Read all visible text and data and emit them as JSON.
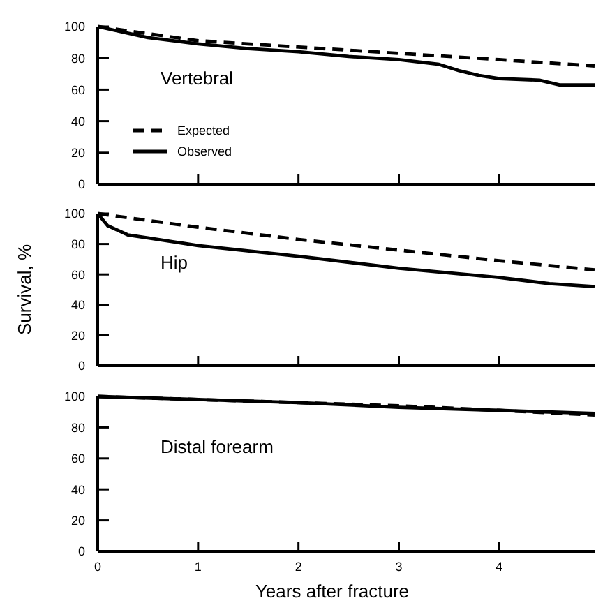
{
  "chart_data": [
    {
      "type": "line",
      "title": "Vertebral",
      "xlim": [
        0,
        4.95
      ],
      "ylim": [
        0,
        100
      ],
      "xticks": [
        {
          "value": 0,
          "label": null
        },
        {
          "value": 1,
          "label": null
        },
        {
          "value": 2,
          "label": null
        },
        {
          "value": 3,
          "label": null
        },
        {
          "value": 4,
          "label": null
        }
      ],
      "yticks": [
        0,
        20,
        40,
        60,
        80,
        100
      ],
      "tick_labels": "y",
      "legend": "left",
      "grid": false,
      "series": [
        {
          "name": "Expected",
          "color": "#000000",
          "line_style": "dashed",
          "x": [
            0,
            1,
            2,
            3,
            4,
            4.95
          ],
          "values": [
            100,
            91,
            87,
            83,
            79,
            75
          ]
        },
        {
          "name": "Observed",
          "color": "#000000",
          "line_style": "solid",
          "x": [
            0,
            0.5,
            1,
            1.5,
            2,
            2.5,
            3,
            3.4,
            3.6,
            3.8,
            4,
            4.4,
            4.6,
            4.95
          ],
          "values": [
            100,
            93,
            89,
            86,
            84,
            81,
            79,
            76,
            72,
            69,
            67,
            66,
            63,
            63
          ]
        }
      ]
    },
    {
      "type": "line",
      "title": "Hip",
      "ylabel": "Survival, %",
      "xlim": [
        0,
        4.95
      ],
      "ylim": [
        0,
        100
      ],
      "xticks": [
        {
          "value": 0,
          "label": null
        },
        {
          "value": 1,
          "label": null
        },
        {
          "value": 2,
          "label": null
        },
        {
          "value": 3,
          "label": null
        },
        {
          "value": 4,
          "label": null
        }
      ],
      "yticks": [
        0,
        20,
        40,
        60,
        80,
        100
      ],
      "tick_labels": "y",
      "grid": false,
      "series": [
        {
          "color": "#000000",
          "line_style": "dashed",
          "x": [
            0,
            1,
            2,
            3,
            4,
            4.95
          ],
          "values": [
            100,
            91,
            83,
            76,
            69,
            63
          ]
        },
        {
          "color": "#000000",
          "line_style": "solid",
          "x": [
            0,
            0.1,
            0.3,
            0.5,
            1,
            2,
            3,
            4,
            4.5,
            4.95
          ],
          "values": [
            100,
            92,
            86,
            84,
            79,
            72,
            64,
            58,
            54,
            52
          ]
        }
      ]
    },
    {
      "type": "line",
      "title": "Distal forearm",
      "xlabel": "Years after fracture",
      "xlim": [
        0,
        4.95
      ],
      "ylim": [
        0,
        100
      ],
      "xticks": [
        0,
        1,
        2,
        3,
        4
      ],
      "yticks": [
        0,
        20,
        40,
        60,
        80,
        100
      ],
      "grid": false,
      "series": [
        {
          "color": "#000000",
          "line_style": "dashed",
          "x": [
            0,
            1,
            2,
            3,
            4,
            4.95
          ],
          "values": [
            100,
            98,
            96,
            94,
            91,
            88
          ]
        },
        {
          "color": "#000000",
          "line_style": "solid",
          "x": [
            0,
            1,
            2,
            3,
            4,
            4.95
          ],
          "values": [
            100,
            98,
            96,
            93,
            91,
            89
          ]
        }
      ]
    }
  ]
}
